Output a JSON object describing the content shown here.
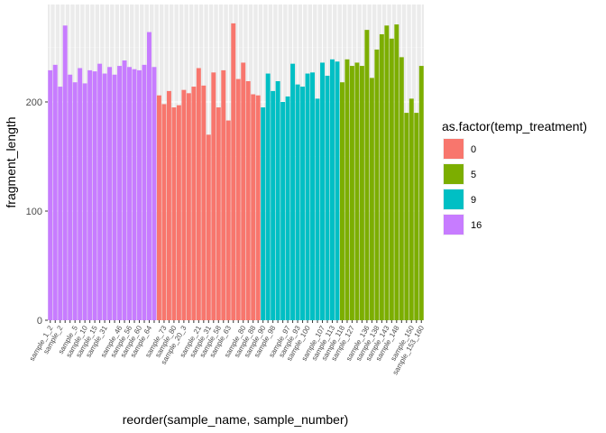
{
  "chart_data": {
    "type": "bar",
    "xlabel": "reorder(sample_name, sample_number)",
    "ylabel": "fragment_length",
    "ylim": [
      0,
      280
    ],
    "yticks": [
      0,
      100,
      200
    ],
    "grid": true,
    "legend": {
      "title": "as.factor(temp_treatment)",
      "placement": "right",
      "entries": [
        {
          "label": "0",
          "color": "#F8766D"
        },
        {
          "label": "5",
          "color": "#7CAE00"
        },
        {
          "label": "9",
          "color": "#00BFC4"
        },
        {
          "label": "16",
          "color": "#C77CFF"
        }
      ]
    },
    "groups": [
      {
        "treatment": "16",
        "color": "#C77CFF",
        "values": [
          229,
          234,
          214,
          270,
          225,
          218,
          231,
          217,
          229,
          228,
          235,
          226,
          232,
          225,
          233,
          238,
          232,
          230,
          229,
          234,
          264,
          232
        ]
      },
      {
        "treatment": "0",
        "color": "#F8766D",
        "values": [
          206,
          198,
          210,
          195,
          197,
          211,
          208,
          214,
          231,
          215,
          170,
          227,
          195,
          229,
          183,
          272,
          221,
          236,
          219,
          207,
          206
        ]
      },
      {
        "treatment": "9",
        "color": "#00BFC4",
        "values": [
          195,
          226,
          210,
          219,
          200,
          205,
          235,
          216,
          214,
          226,
          227,
          203,
          236,
          224,
          239,
          237
        ]
      },
      {
        "treatment": "5",
        "color": "#7CAE00",
        "values": [
          218,
          239,
          233,
          236,
          233,
          266,
          222,
          248,
          262,
          270,
          258,
          271,
          241,
          190,
          203,
          190,
          233
        ]
      }
    ],
    "x_tick_labels": [
      "sample_1_2",
      "sample_2",
      "sample_5",
      "sample_10",
      "sample_15",
      "sample_31",
      "sample_46",
      "sample_56",
      "sample_60",
      "sample_64",
      "sample_73",
      "sample_80",
      "sample_20_3",
      "sample_21",
      "sample_31",
      "sample_58",
      "sample_63",
      "sample_80",
      "sample_88",
      "sample_90",
      "sample_98",
      "sample_97",
      "sample_93",
      "sample_100",
      "sample_107",
      "sample_113",
      "sample_118",
      "sample_127",
      "sample_136",
      "sample_138",
      "sample_143",
      "sample_148",
      "sample_150",
      "sample_153_160"
    ]
  }
}
